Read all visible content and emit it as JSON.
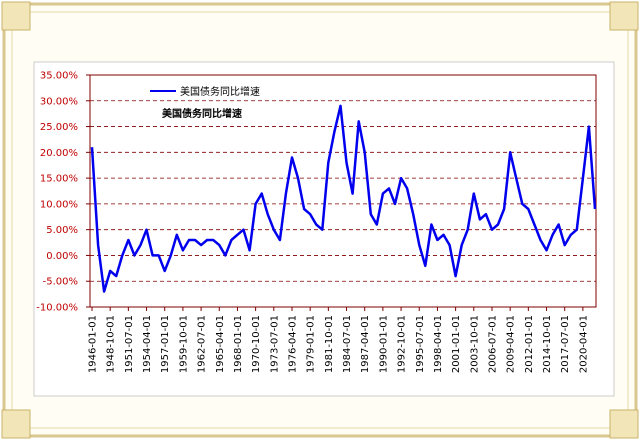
{
  "chart_data": {
    "type": "line",
    "title": "美国债务同比增速",
    "categories": [
      "1946-01-01",
      null,
      null,
      "1948-10-01",
      null,
      null,
      "1951-07-01",
      null,
      null,
      "1954-04-01",
      null,
      null,
      "1957-01-01",
      null,
      null,
      "1959-10-01",
      null,
      null,
      "1962-07-01",
      null,
      null,
      "1965-04-01",
      null,
      null,
      "1968-01-01",
      null,
      null,
      "1970-10-01",
      null,
      null,
      "1973-07-01",
      null,
      null,
      "1976-04-01",
      null,
      null,
      "1979-01-01",
      null,
      null,
      "1981-10-01",
      null,
      null,
      "1984-07-01",
      null,
      null,
      "1987-04-01",
      null,
      null,
      "1990-01-01",
      null,
      null,
      "1992-10-01",
      null,
      null,
      "1995-07-01",
      null,
      null,
      "1998-04-01",
      null,
      null,
      "2001-01-01",
      null,
      null,
      "2003-10-01",
      null,
      null,
      "2006-07-01",
      null,
      null,
      "2009-04-01",
      null,
      null,
      "2012-01-01",
      null,
      null,
      "2014-10-01",
      null,
      null,
      "2017-07-01",
      null,
      null,
      "2020-04-01",
      null,
      null
    ],
    "series": [
      {
        "name": "美国债务同比增速",
        "color": "#0000ee",
        "values": [
          21,
          2,
          -7,
          -3,
          -4,
          0,
          3,
          0,
          2,
          5,
          0,
          0,
          -3,
          0,
          4,
          1,
          3,
          3,
          2,
          3,
          3,
          2,
          0,
          3,
          4,
          5,
          1,
          10,
          12,
          8,
          5,
          3,
          12,
          19,
          15,
          9,
          8,
          6,
          5,
          18,
          24,
          29,
          18,
          12,
          26,
          20,
          8,
          6,
          12,
          13,
          10,
          15,
          13,
          8,
          2,
          -2,
          6,
          3,
          4,
          2,
          -4,
          2,
          5,
          12,
          7,
          8,
          5,
          6,
          9,
          20,
          15,
          10,
          9,
          6,
          3,
          1,
          4,
          6,
          2,
          4,
          5,
          15,
          25,
          9
        ]
      }
    ],
    "ylim": [
      -10,
      35
    ],
    "yticks": [
      {
        "value": -10,
        "label": "-10.00%"
      },
      {
        "value": -5,
        "label": "-5.00%"
      },
      {
        "value": 0,
        "label": "0.00%"
      },
      {
        "value": 5,
        "label": "5.00%"
      },
      {
        "value": 10,
        "label": "10.00%"
      },
      {
        "value": 15,
        "label": "15.00%"
      },
      {
        "value": 20,
        "label": "20.00%"
      },
      {
        "value": 25,
        "label": "25.00%"
      },
      {
        "value": 30,
        "label": "30.00%"
      },
      {
        "value": 35,
        "label": "35.00%"
      }
    ],
    "grid": true
  }
}
